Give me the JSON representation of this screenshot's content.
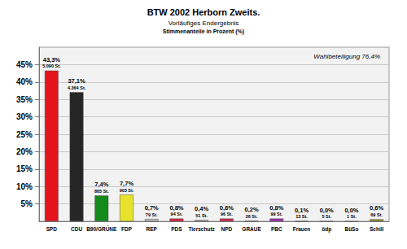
{
  "chart_data": {
    "type": "bar",
    "title": "BTW 2002 Herborn Zweits.",
    "subtitle": "Vorläufiges Endergebnis",
    "axis_label": "Stimmenanteile in Prozent (%)",
    "annotation": "Wahlbeteiligung 76,4%",
    "categories": [
      "SPD",
      "CDU",
      "B90/GRÜNE",
      "FDP",
      "REP",
      "PDS",
      "Tierschutz",
      "NPD",
      "GRAUE",
      "PBC",
      "Frauen",
      "ödp",
      "BüSo",
      "Schill"
    ],
    "values": [
      43.3,
      37.1,
      7.4,
      7.7,
      0.7,
      0.8,
      0.4,
      0.8,
      0.2,
      0.8,
      0.1,
      0.0,
      0.0,
      0.6
    ],
    "value_labels": [
      "43,3%",
      "37,1%",
      "7,4%",
      "7,7%",
      "0,7%",
      "0,8%",
      "0,4%",
      "0,8%",
      "0,2%",
      "0,8%",
      "0,1%",
      "0,0%",
      "0,0%",
      "0,6%"
    ],
    "votes": [
      5090,
      4364,
      865,
      903,
      79,
      94,
      51,
      96,
      26,
      99,
      13,
      5,
      1,
      69
    ],
    "vote_labels": [
      "5.090 St.",
      "4.364 St.",
      "865 St.",
      "903 St.",
      "79 St.",
      "94 St.",
      "51 St.",
      "96 St.",
      "26 St.",
      "99 St.",
      "13 St.",
      "5 St.",
      "1 St.",
      "69 St."
    ],
    "colors": [
      "#e3141c",
      "#262626",
      "#138a1a",
      "#e6e32a",
      "#b8b8b8",
      "#d8203a",
      "#b0b0b0",
      "#c8284a",
      "#b8b8b8",
      "#9a2aa8",
      "#3a9a3a",
      "#b8b8b8",
      "#b8b8b8",
      "#8f8a2a"
    ],
    "ylim": [
      0,
      50
    ],
    "yticks": [
      {
        "value": 5,
        "label": "5%"
      },
      {
        "value": 10,
        "label": "10%"
      },
      {
        "value": 15,
        "label": "15%"
      },
      {
        "value": 20,
        "label": "20%"
      },
      {
        "value": 25,
        "label": "25%"
      },
      {
        "value": 30,
        "label": "30%"
      },
      {
        "value": 35,
        "label": "35%"
      },
      {
        "value": 40,
        "label": "40%"
      },
      {
        "value": 45,
        "label": "45%"
      }
    ],
    "grid": true,
    "data_labels": true
  }
}
